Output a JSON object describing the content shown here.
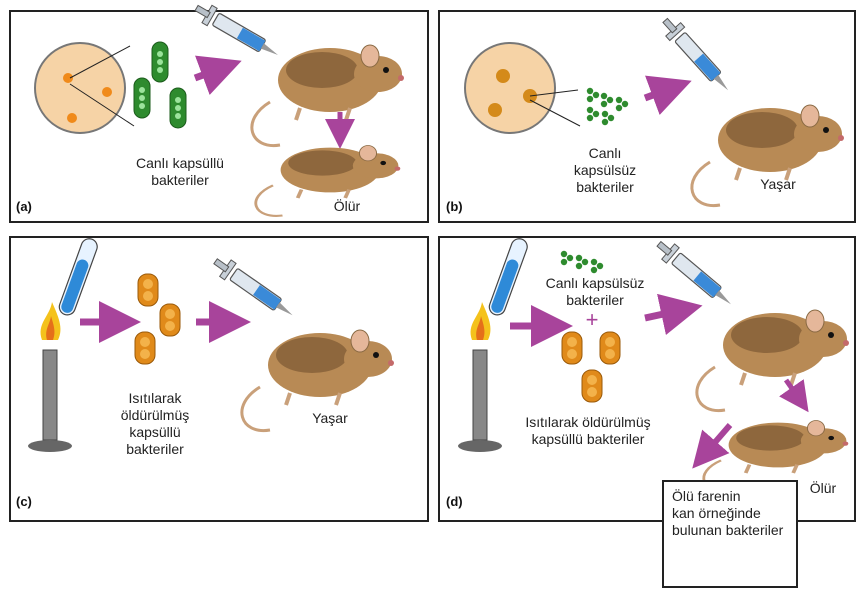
{
  "panels": {
    "a": {
      "label": "(a)",
      "caption": [
        "Canlı kapsüllü",
        "bakteriler"
      ],
      "outcome": "Ölür"
    },
    "b": {
      "label": "(b)",
      "caption": [
        "Canlı",
        "kapsülsüz",
        "bakteriler"
      ],
      "outcome": "Yaşar"
    },
    "c": {
      "label": "(c)",
      "caption": [
        "Isıtılarak",
        "öldürülmüş",
        "kapsüllü",
        "bakteriler"
      ],
      "outcome": "Yaşar"
    },
    "d": {
      "label": "(d)",
      "caption_top": [
        "Canlı kapsülsüz",
        "bakteriler"
      ],
      "plus": "+",
      "caption_bottom": [
        "Isıtılarak öldürülmüş",
        "kapsüllü bakteriler"
      ],
      "outcome": "Ölür",
      "result_box": [
        "Ölü farenin",
        "kan örneğinde",
        "bulunan bakteriler"
      ]
    }
  },
  "colors": {
    "arrow": "#a8449b",
    "capsulated_bacteria": "#2e8b2e",
    "heat_killed_bacteria": "#e08a1a",
    "mouse_fur": "#b88a55",
    "petri_dish": "#f6d3a6"
  }
}
